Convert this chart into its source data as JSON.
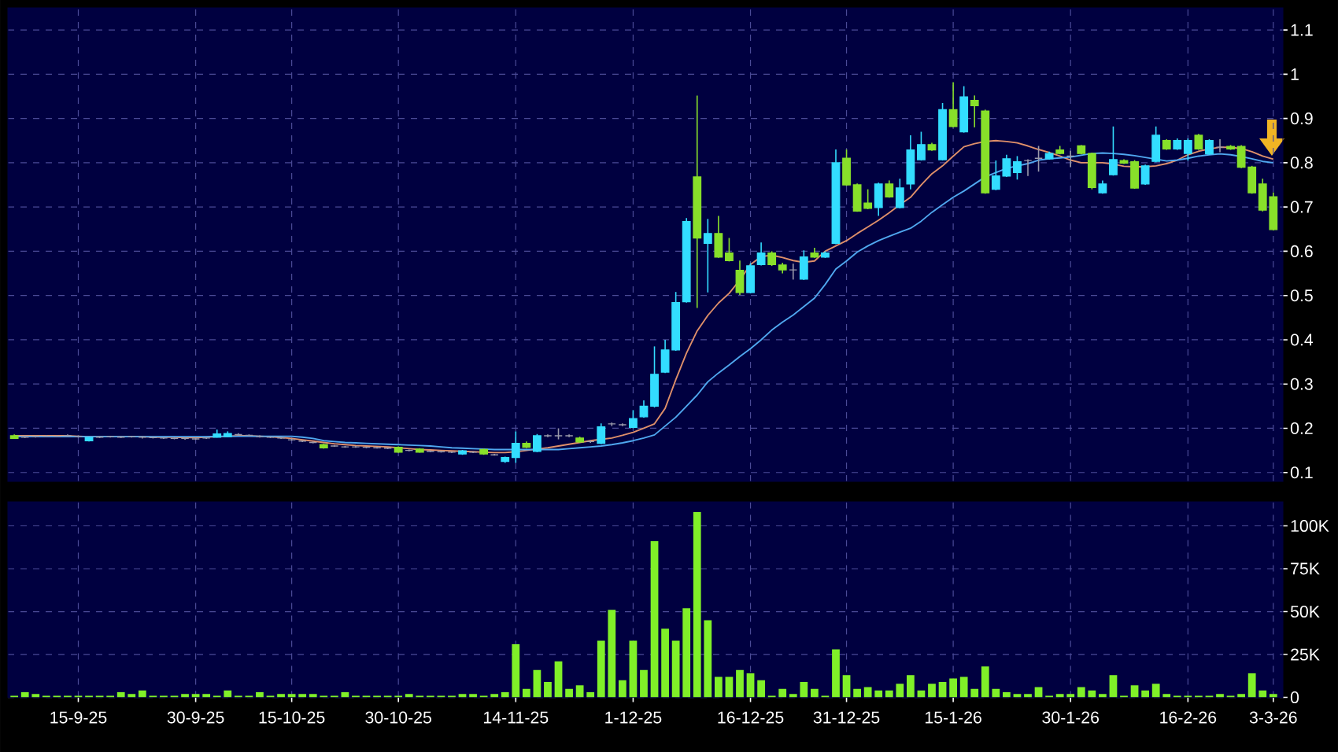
{
  "chart_data": [
    {
      "type": "candlestick",
      "tick_labels": "y",
      "grid": true,
      "ylim": [
        0.08,
        1.15
      ],
      "yticks": [
        0.1,
        0.2,
        0.3,
        0.4,
        0.5,
        0.6,
        0.7,
        0.8,
        0.9,
        1,
        1.1
      ],
      "categories": [
        null,
        null,
        null,
        null,
        null,
        null,
        null,
        null,
        null,
        null,
        null,
        null,
        null,
        null,
        null,
        null,
        null,
        null,
        null,
        null,
        null,
        null,
        null,
        null,
        null,
        null,
        null,
        null,
        null,
        null,
        null,
        null,
        null,
        null,
        null,
        null,
        null,
        null,
        null,
        null,
        null,
        null,
        null,
        null,
        null,
        null,
        null,
        null,
        null,
        null,
        null,
        null,
        null,
        null,
        null,
        null,
        null,
        null,
        null,
        null,
        null,
        null,
        null,
        null,
        null,
        null,
        null,
        null,
        null,
        null,
        null,
        null,
        null,
        null,
        null,
        null,
        null,
        null,
        null,
        null,
        null,
        null,
        null,
        null,
        null,
        null,
        null,
        null,
        null,
        null,
        null,
        null,
        null,
        null,
        null,
        null,
        null,
        null,
        null,
        null,
        null,
        null,
        null,
        null,
        null,
        null,
        null,
        null,
        null,
        null,
        null,
        null,
        null,
        null,
        null,
        null,
        null,
        null,
        null
      ],
      "ohlc": [
        [
          0.183,
          0.186,
          0.176,
          0.177
        ],
        [
          0.18,
          0.184,
          0.178,
          0.18
        ],
        [
          0.181,
          0.184,
          0.179,
          0.181
        ],
        [
          0.182,
          0.185,
          0.18,
          0.182
        ],
        [
          0.182,
          0.184,
          0.18,
          0.182
        ],
        [
          0.183,
          0.186,
          0.181,
          0.183
        ],
        [
          0.181,
          0.184,
          0.179,
          0.181
        ],
        [
          0.172,
          0.181,
          0.17,
          0.179
        ],
        [
          0.18,
          0.182,
          0.178,
          0.18
        ],
        [
          0.181,
          0.183,
          0.179,
          0.181
        ],
        [
          0.18,
          0.182,
          0.178,
          0.18
        ],
        [
          0.181,
          0.183,
          0.179,
          0.181
        ],
        [
          0.18,
          0.182,
          0.177,
          0.18
        ],
        [
          0.179,
          0.181,
          0.177,
          0.179
        ],
        [
          0.178,
          0.18,
          0.176,
          0.178
        ],
        [
          0.177,
          0.179,
          0.175,
          0.177
        ],
        [
          0.177,
          0.179,
          0.174,
          0.177
        ],
        [
          0.176,
          0.178,
          0.174,
          0.176
        ],
        [
          0.178,
          0.18,
          0.176,
          0.178
        ],
        [
          0.18,
          0.197,
          0.179,
          0.187
        ],
        [
          0.181,
          0.193,
          0.18,
          0.188
        ],
        [
          0.186,
          0.189,
          0.183,
          0.186
        ],
        [
          0.184,
          0.186,
          0.182,
          0.184
        ],
        [
          0.181,
          0.184,
          0.179,
          0.181
        ],
        [
          0.18,
          0.182,
          0.178,
          0.18
        ],
        [
          0.178,
          0.18,
          0.176,
          0.178
        ],
        [
          0.174,
          0.177,
          0.172,
          0.174
        ],
        [
          0.171,
          0.173,
          0.169,
          0.171
        ],
        [
          0.168,
          0.17,
          0.166,
          0.168
        ],
        [
          0.163,
          0.165,
          0.154,
          0.156
        ],
        [
          0.16,
          0.162,
          0.158,
          0.16
        ],
        [
          0.158,
          0.16,
          0.156,
          0.158
        ],
        [
          0.158,
          0.16,
          0.156,
          0.158
        ],
        [
          0.157,
          0.159,
          0.155,
          0.157
        ],
        [
          0.156,
          0.158,
          0.154,
          0.156
        ],
        [
          0.155,
          0.157,
          0.153,
          0.155
        ],
        [
          0.157,
          0.159,
          0.145,
          0.146
        ],
        [
          0.15,
          0.152,
          0.148,
          0.15
        ],
        [
          0.153,
          0.155,
          0.145,
          0.146
        ],
        [
          0.148,
          0.15,
          0.146,
          0.148
        ],
        [
          0.147,
          0.149,
          0.145,
          0.147
        ],
        [
          0.146,
          0.148,
          0.144,
          0.146
        ],
        [
          0.142,
          0.151,
          0.14,
          0.149
        ],
        [
          0.146,
          0.148,
          0.144,
          0.146
        ],
        [
          0.152,
          0.154,
          0.14,
          0.142
        ],
        [
          0.14,
          0.142,
          0.138,
          0.14
        ],
        [
          0.125,
          0.136,
          0.122,
          0.134
        ],
        [
          0.134,
          0.193,
          0.122,
          0.166
        ],
        [
          0.166,
          0.17,
          0.155,
          0.157
        ],
        [
          0.148,
          0.187,
          0.146,
          0.183
        ],
        [
          0.183,
          0.186,
          0.18,
          0.183
        ],
        [
          0.183,
          0.2,
          0.175,
          0.183
        ],
        [
          0.183,
          0.186,
          0.18,
          0.183
        ],
        [
          0.178,
          0.181,
          0.167,
          0.169
        ],
        [
          0.17,
          0.173,
          0.167,
          0.17
        ],
        [
          0.166,
          0.211,
          0.164,
          0.203
        ],
        [
          0.21,
          0.213,
          0.205,
          0.21
        ],
        [
          0.208,
          0.211,
          0.205,
          0.208
        ],
        [
          0.202,
          0.241,
          0.2,
          0.222
        ],
        [
          0.226,
          0.263,
          0.224,
          0.25
        ],
        [
          0.25,
          0.385,
          0.247,
          0.322
        ],
        [
          0.327,
          0.4,
          0.325,
          0.377
        ],
        [
          0.377,
          0.508,
          0.375,
          0.484
        ],
        [
          0.486,
          0.675,
          0.484,
          0.667
        ],
        [
          0.768,
          0.952,
          0.472,
          0.63
        ],
        [
          0.618,
          0.673,
          0.507,
          0.64
        ],
        [
          0.64,
          0.68,
          0.585,
          0.587
        ],
        [
          0.596,
          0.63,
          0.577,
          0.579
        ],
        [
          0.557,
          0.579,
          0.501,
          0.507
        ],
        [
          0.507,
          0.573,
          0.505,
          0.567
        ],
        [
          0.57,
          0.62,
          0.568,
          0.596
        ],
        [
          0.596,
          0.6,
          0.567,
          0.57
        ],
        [
          0.569,
          0.574,
          0.55,
          0.558
        ],
        [
          0.558,
          0.572,
          0.536,
          0.558
        ],
        [
          0.537,
          0.602,
          0.535,
          0.587
        ],
        [
          0.596,
          0.608,
          0.585,
          0.587
        ],
        [
          0.587,
          0.6,
          0.585,
          0.596
        ],
        [
          0.618,
          0.83,
          0.616,
          0.8
        ],
        [
          0.81,
          0.83,
          0.748,
          0.75
        ],
        [
          0.75,
          0.753,
          0.689,
          0.691
        ],
        [
          0.709,
          0.74,
          0.695,
          0.697
        ],
        [
          0.699,
          0.755,
          0.68,
          0.752
        ],
        [
          0.752,
          0.76,
          0.721,
          0.723
        ],
        [
          0.699,
          0.764,
          0.697,
          0.743
        ],
        [
          0.752,
          0.862,
          0.74,
          0.829
        ],
        [
          0.807,
          0.87,
          0.805,
          0.841
        ],
        [
          0.841,
          0.845,
          0.827,
          0.829
        ],
        [
          0.807,
          0.935,
          0.805,
          0.92
        ],
        [
          0.92,
          0.982,
          0.88,
          0.882
        ],
        [
          0.87,
          0.973,
          0.868,
          0.949
        ],
        [
          0.941,
          0.952,
          0.88,
          0.929
        ],
        [
          0.917,
          0.92,
          0.73,
          0.732
        ],
        [
          0.74,
          0.805,
          0.738,
          0.77
        ],
        [
          0.77,
          0.818,
          0.768,
          0.809
        ],
        [
          0.778,
          0.815,
          0.762,
          0.802
        ],
        [
          0.805,
          0.808,
          0.77,
          0.805
        ],
        [
          0.81,
          0.838,
          0.78,
          0.81
        ],
        [
          0.809,
          0.825,
          0.807,
          0.821
        ],
        [
          0.829,
          0.838,
          0.819,
          0.821
        ],
        [
          0.815,
          0.827,
          0.79,
          0.815
        ],
        [
          0.838,
          0.84,
          0.819,
          0.821
        ],
        [
          0.821,
          0.823,
          0.74,
          0.744
        ],
        [
          0.732,
          0.76,
          0.73,
          0.752
        ],
        [
          0.773,
          0.882,
          0.771,
          0.807
        ],
        [
          0.805,
          0.808,
          0.797,
          0.799
        ],
        [
          0.802,
          0.806,
          0.741,
          0.743
        ],
        [
          0.752,
          0.796,
          0.75,
          0.793
        ],
        [
          0.803,
          0.882,
          0.801,
          0.862
        ],
        [
          0.85,
          0.853,
          0.829,
          0.831
        ],
        [
          0.831,
          0.855,
          0.829,
          0.85
        ],
        [
          0.821,
          0.855,
          0.805,
          0.85
        ],
        [
          0.862,
          0.865,
          0.829,
          0.831
        ],
        [
          0.82,
          0.853,
          0.818,
          0.85
        ],
        [
          0.835,
          0.853,
          0.824,
          0.835
        ],
        [
          0.837,
          0.84,
          0.829,
          0.831
        ],
        [
          0.837,
          0.84,
          0.788,
          0.79
        ],
        [
          0.79,
          0.793,
          0.73,
          0.732
        ],
        [
          0.752,
          0.764,
          0.69,
          0.693
        ],
        [
          0.723,
          0.733,
          0.647,
          0.649
        ]
      ],
      "colors": [
        "#88e02a",
        "#9a9aaa",
        "#9a9aaa",
        "#9a9aaa",
        "#9a9aaa",
        "#9a9aaa",
        "#9a9aaa",
        "#33ddff",
        "#9a9aaa",
        "#9a9aaa",
        "#9a9aaa",
        "#9a9aaa",
        "#9a9aaa",
        "#9a9aaa",
        "#9a9aaa",
        "#9a9aaa",
        "#9a9aaa",
        "#9a9aaa",
        "#9a9aaa",
        "#33ddff",
        "#33ddff",
        "#9a9aaa",
        "#9a9aaa",
        "#9a9aaa",
        "#9a9aaa",
        "#9a9aaa",
        "#9a9aaa",
        "#9a9aaa",
        "#9a9aaa",
        "#88e02a",
        "#9a9aaa",
        "#9a9aaa",
        "#9a9aaa",
        "#9a9aaa",
        "#9a9aaa",
        "#9a9aaa",
        "#88e02a",
        "#9a9aaa",
        "#88e02a",
        "#9a9aaa",
        "#9a9aaa",
        "#9a9aaa",
        "#33ddff",
        "#9a9aaa",
        "#88e02a",
        "#9a9aaa",
        "#33ddff",
        "#33ddff",
        "#88e02a",
        "#33ddff",
        "#9a9aaa",
        "#9a9aaa",
        "#9a9aaa",
        "#88e02a",
        "#9a9aaa",
        "#33ddff",
        "#9a9aaa",
        "#9a9aaa",
        "#33ddff",
        "#33ddff",
        "#33ddff",
        "#33ddff",
        "#33ddff",
        "#33ddff",
        "#88e02a",
        "#33ddff",
        "#88e02a",
        "#88e02a",
        "#88e02a",
        "#33ddff",
        "#33ddff",
        "#88e02a",
        "#88e02a",
        "#9a9aaa",
        "#33ddff",
        "#88e02a",
        "#33ddff",
        "#33ddff",
        "#88e02a",
        "#88e02a",
        "#88e02a",
        "#33ddff",
        "#88e02a",
        "#33ddff",
        "#33ddff",
        "#33ddff",
        "#88e02a",
        "#33ddff",
        "#88e02a",
        "#33ddff",
        "#88e02a",
        "#88e02a",
        "#33ddff",
        "#33ddff",
        "#33ddff",
        "#9a9aaa",
        "#9a9aaa",
        "#33ddff",
        "#88e02a",
        "#9a9aaa",
        "#88e02a",
        "#88e02a",
        "#33ddff",
        "#33ddff",
        "#88e02a",
        "#88e02a",
        "#33ddff",
        "#33ddff",
        "#88e02a",
        "#33ddff",
        "#33ddff",
        "#88e02a",
        "#33ddff",
        "#9a9aaa",
        "#88e02a",
        "#88e02a",
        "#88e02a",
        "#88e02a",
        "#88e02a"
      ],
      "series": [
        {
          "type": "line",
          "color": "#e0906a",
          "values": [
            0.183,
            0.183,
            0.183,
            0.183,
            0.183,
            0.183,
            0.182,
            0.181,
            0.181,
            0.181,
            0.181,
            0.181,
            0.181,
            0.18,
            0.18,
            0.18,
            0.179,
            0.179,
            0.18,
            0.181,
            0.182,
            0.183,
            0.183,
            0.182,
            0.181,
            0.179,
            0.177,
            0.174,
            0.171,
            0.168,
            0.165,
            0.163,
            0.161,
            0.16,
            0.159,
            0.158,
            0.156,
            0.154,
            0.152,
            0.151,
            0.15,
            0.149,
            0.148,
            0.147,
            0.146,
            0.145,
            0.145,
            0.147,
            0.15,
            0.153,
            0.156,
            0.16,
            0.164,
            0.168,
            0.172,
            0.175,
            0.178,
            0.184,
            0.191,
            0.2,
            0.21,
            0.245,
            0.31,
            0.37,
            0.42,
            0.455,
            0.483,
            0.505,
            0.535,
            0.57,
            0.588,
            0.591,
            0.586,
            0.579,
            0.575,
            0.578,
            0.6,
            0.612,
            0.624,
            0.64,
            0.655,
            0.67,
            0.687,
            0.705,
            0.722,
            0.75,
            0.775,
            0.793,
            0.815,
            0.836,
            0.843,
            0.848,
            0.85,
            0.848,
            0.845,
            0.838,
            0.83,
            0.823,
            0.815,
            0.806,
            0.8,
            0.8,
            0.8,
            0.797,
            0.792,
            0.791,
            0.791,
            0.793,
            0.798,
            0.806,
            0.818,
            0.826,
            0.831,
            0.835,
            0.835,
            0.832,
            0.825,
            0.815,
            0.808
          ]
        },
        {
          "type": "line",
          "color": "#50a8f0",
          "values": [
            0.181,
            0.181,
            0.181,
            0.181,
            0.181,
            0.181,
            0.181,
            0.181,
            0.181,
            0.181,
            0.181,
            0.181,
            0.181,
            0.181,
            0.181,
            0.181,
            0.181,
            0.181,
            0.181,
            0.182,
            0.182,
            0.182,
            0.182,
            0.182,
            0.182,
            0.182,
            0.182,
            0.18,
            0.177,
            0.172,
            0.17,
            0.168,
            0.167,
            0.166,
            0.165,
            0.164,
            0.163,
            0.162,
            0.161,
            0.16,
            0.158,
            0.156,
            0.155,
            0.154,
            0.153,
            0.152,
            0.152,
            0.152,
            0.152,
            0.152,
            0.152,
            0.152,
            0.154,
            0.156,
            0.158,
            0.16,
            0.163,
            0.167,
            0.172,
            0.178,
            0.185,
            0.205,
            0.225,
            0.25,
            0.275,
            0.305,
            0.325,
            0.343,
            0.362,
            0.38,
            0.4,
            0.422,
            0.44,
            0.456,
            0.475,
            0.494,
            0.525,
            0.56,
            0.578,
            0.598,
            0.612,
            0.624,
            0.634,
            0.643,
            0.652,
            0.668,
            0.688,
            0.705,
            0.722,
            0.736,
            0.752,
            0.768,
            0.778,
            0.787,
            0.793,
            0.798,
            0.806,
            0.809,
            0.811,
            0.813,
            0.817,
            0.821,
            0.822,
            0.821,
            0.819,
            0.816,
            0.812,
            0.808,
            0.804,
            0.806,
            0.81,
            0.815,
            0.818,
            0.82,
            0.818,
            0.814,
            0.809,
            0.803,
            0.8
          ]
        }
      ]
    },
    {
      "type": "bar",
      "grid": true,
      "color": "#80f028",
      "ylim": [
        0,
        114000
      ],
      "yticks": [
        0,
        {
          "value": 25000,
          "label": "25K"
        },
        {
          "value": 50000,
          "label": "50K"
        },
        {
          "value": 75000,
          "label": "75K"
        },
        {
          "value": 100000,
          "label": "100K"
        }
      ],
      "categories": [
        null,
        null,
        null,
        null,
        null,
        null,
        "15-9-25",
        null,
        null,
        null,
        null,
        null,
        null,
        null,
        null,
        null,
        null,
        "30-9-25",
        null,
        null,
        null,
        null,
        null,
        null,
        null,
        null,
        "15-10-25",
        null,
        null,
        null,
        null,
        null,
        null,
        null,
        null,
        null,
        "30-10-25",
        null,
        null,
        null,
        null,
        null,
        null,
        null,
        null,
        null,
        null,
        "14-11-25",
        null,
        null,
        null,
        null,
        null,
        null,
        null,
        null,
        null,
        null,
        "1-12-25",
        null,
        null,
        null,
        null,
        null,
        null,
        null,
        null,
        null,
        null,
        "16-12-25",
        null,
        null,
        null,
        null,
        null,
        null,
        null,
        null,
        "31-12-25",
        null,
        null,
        null,
        null,
        null,
        null,
        null,
        null,
        null,
        "15-1-26",
        null,
        null,
        null,
        null,
        null,
        null,
        null,
        null,
        null,
        null,
        "30-1-26",
        null,
        null,
        null,
        null,
        null,
        null,
        null,
        null,
        null,
        null,
        "16-2-26",
        null,
        null,
        null,
        null,
        null,
        null,
        null,
        "3-3-26"
      ],
      "values": [
        1000,
        3000,
        2000,
        1000,
        1000,
        1000,
        1000,
        1000,
        1000,
        1000,
        3000,
        2000,
        4000,
        1000,
        1000,
        1000,
        2000,
        2000,
        2000,
        1000,
        4000,
        1000,
        1000,
        3000,
        1000,
        2000,
        2000,
        2000,
        2000,
        1000,
        1000,
        3000,
        1000,
        1000,
        1000,
        1000,
        1000,
        2000,
        1000,
        1000,
        1000,
        1000,
        2000,
        2000,
        1000,
        2000,
        3000,
        31000,
        5000,
        16000,
        9000,
        21000,
        5000,
        7000,
        3000,
        33000,
        51000,
        10000,
        33000,
        16000,
        91000,
        40000,
        33000,
        52000,
        108000,
        45000,
        12000,
        12000,
        16000,
        14000,
        10000,
        1000,
        5000,
        2000,
        9000,
        5000,
        1000,
        28000,
        13000,
        5000,
        6000,
        4000,
        4000,
        8000,
        13000,
        4000,
        8000,
        9000,
        11000,
        12000,
        5000,
        18000,
        5000,
        3000,
        2000,
        2000,
        6000,
        1000,
        2000,
        2000,
        6000,
        4000,
        2000,
        13000,
        1000,
        7000,
        4000,
        8000,
        2000,
        1000,
        1000,
        1000,
        1000,
        2000,
        1000,
        2000,
        14000,
        4000,
        2000
      ]
    }
  ]
}
